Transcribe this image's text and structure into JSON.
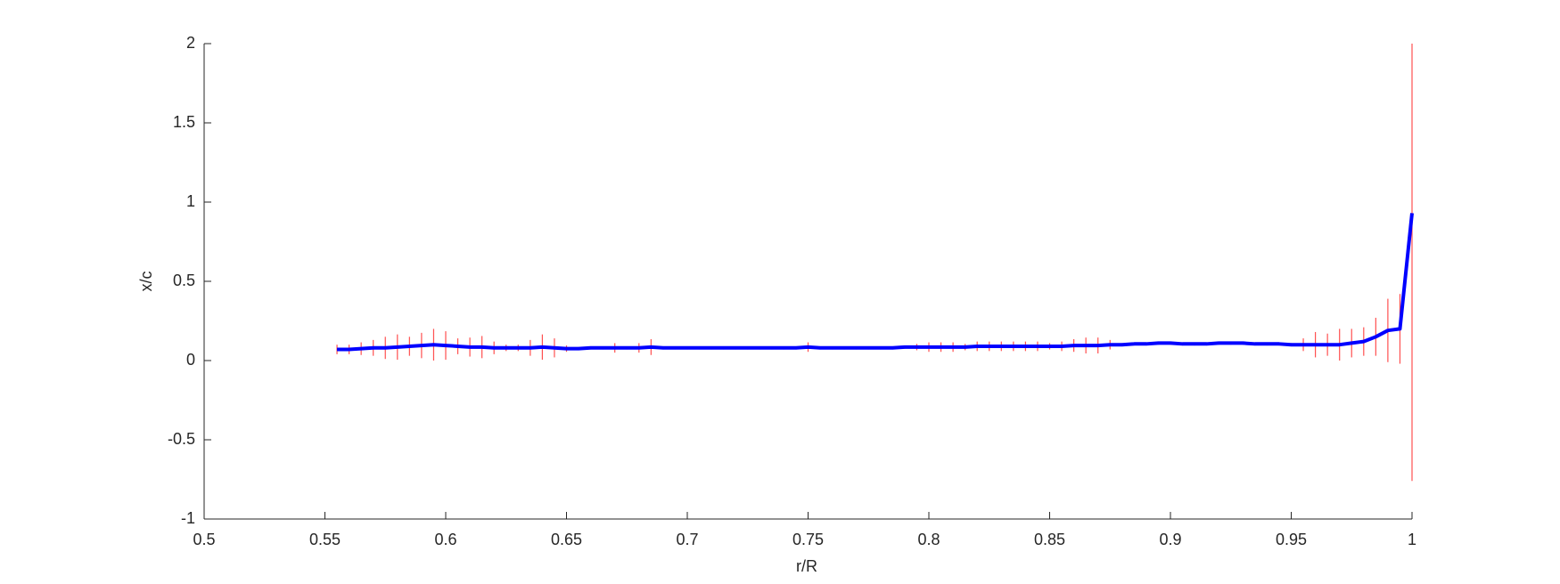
{
  "chart_data": {
    "type": "errorbar",
    "xlabel": "r/R",
    "ylabel": "x/c",
    "x": [
      0.555,
      0.56,
      0.565,
      0.57,
      0.575,
      0.58,
      0.585,
      0.59,
      0.595,
      0.6,
      0.605,
      0.61,
      0.615,
      0.62,
      0.625,
      0.63,
      0.635,
      0.64,
      0.645,
      0.65,
      0.655,
      0.66,
      0.665,
      0.67,
      0.675,
      0.68,
      0.685,
      0.69,
      0.695,
      0.7,
      0.705,
      0.71,
      0.715,
      0.72,
      0.725,
      0.73,
      0.735,
      0.74,
      0.745,
      0.75,
      0.755,
      0.76,
      0.765,
      0.77,
      0.775,
      0.78,
      0.785,
      0.79,
      0.795,
      0.8,
      0.805,
      0.81,
      0.815,
      0.82,
      0.825,
      0.83,
      0.835,
      0.84,
      0.845,
      0.85,
      0.855,
      0.86,
      0.865,
      0.87,
      0.875,
      0.88,
      0.885,
      0.89,
      0.895,
      0.9,
      0.905,
      0.91,
      0.915,
      0.92,
      0.925,
      0.93,
      0.935,
      0.94,
      0.945,
      0.95,
      0.955,
      0.96,
      0.965,
      0.97,
      0.975,
      0.98,
      0.985,
      0.99,
      0.995,
      1.0
    ],
    "values": [
      0.07,
      0.07,
      0.075,
      0.08,
      0.08,
      0.085,
      0.09,
      0.095,
      0.1,
      0.095,
      0.09,
      0.085,
      0.085,
      0.08,
      0.08,
      0.08,
      0.08,
      0.085,
      0.08,
      0.075,
      0.075,
      0.08,
      0.08,
      0.08,
      0.08,
      0.08,
      0.085,
      0.08,
      0.08,
      0.08,
      0.08,
      0.08,
      0.08,
      0.08,
      0.08,
      0.08,
      0.08,
      0.08,
      0.08,
      0.085,
      0.08,
      0.08,
      0.08,
      0.08,
      0.08,
      0.08,
      0.08,
      0.085,
      0.085,
      0.085,
      0.085,
      0.085,
      0.085,
      0.09,
      0.09,
      0.09,
      0.09,
      0.09,
      0.09,
      0.09,
      0.09,
      0.095,
      0.095,
      0.095,
      0.1,
      0.1,
      0.105,
      0.105,
      0.11,
      0.11,
      0.105,
      0.105,
      0.105,
      0.11,
      0.11,
      0.11,
      0.105,
      0.105,
      0.105,
      0.1,
      0.1,
      0.1,
      0.1,
      0.1,
      0.11,
      0.12,
      0.15,
      0.19,
      0.2,
      0.93
    ],
    "errors": [
      0.03,
      0.03,
      0.04,
      0.05,
      0.07,
      0.08,
      0.06,
      0.08,
      0.1,
      0.09,
      0.05,
      0.06,
      0.07,
      0.04,
      0.02,
      0.02,
      0.05,
      0.08,
      0.06,
      0.02,
      0.01,
      0.01,
      0.01,
      0.03,
      0.01,
      0.03,
      0.05,
      0.01,
      0.01,
      0.01,
      0.01,
      0.01,
      0.01,
      0.01,
      0.01,
      0.01,
      0.01,
      0.01,
      0.01,
      0.03,
      0.01,
      0.01,
      0.01,
      0.01,
      0.01,
      0.01,
      0.01,
      0.01,
      0.02,
      0.03,
      0.03,
      0.03,
      0.02,
      0.03,
      0.03,
      0.03,
      0.03,
      0.03,
      0.03,
      0.02,
      0.03,
      0.04,
      0.05,
      0.05,
      0.03,
      0.01,
      0.01,
      0.01,
      0.01,
      0.01,
      0.01,
      0.01,
      0.01,
      0.01,
      0.01,
      0.01,
      0.01,
      0.01,
      0.01,
      0.01,
      0.04,
      0.08,
      0.07,
      0.1,
      0.09,
      0.09,
      0.12,
      0.2,
      0.22,
      1.69
    ],
    "color": "#0000ff",
    "error_color": "#ff5050",
    "xlim": [
      0.5,
      1
    ],
    "xticks": [
      0.5,
      0.55,
      0.6,
      0.65,
      0.7,
      0.75,
      0.8,
      0.85,
      0.9,
      0.95,
      1
    ],
    "ylim": [
      -1,
      2
    ],
    "yticks": [
      -1,
      -0.5,
      0,
      0.5,
      1,
      1.5,
      2
    ]
  }
}
